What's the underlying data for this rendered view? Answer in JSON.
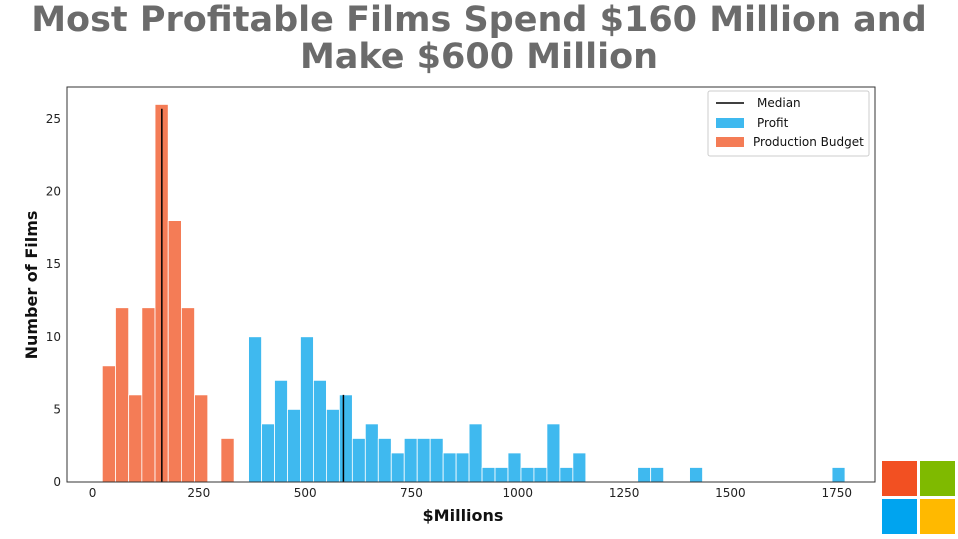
{
  "chart_data": {
    "type": "bar",
    "title_lines": [
      "Most Profitable Films Spend $160 Million and",
      "Make $600 Million"
    ],
    "xlabel": "$Millions",
    "ylabel": "Number of Films",
    "xlim": [
      -60,
      1840
    ],
    "ylim": [
      0,
      27.2
    ],
    "xticks": [
      0,
      250,
      500,
      750,
      1000,
      1250,
      1500,
      1750
    ],
    "yticks": [
      0,
      5,
      10,
      15,
      20,
      25
    ],
    "grid": false,
    "legend_position": "top-right",
    "legend": [
      "Median",
      "Profit",
      "Production Budget"
    ],
    "series": [
      {
        "name": "Production Budget",
        "color": "#f47c56",
        "bin_width": 31,
        "bin_starts": [
          23,
          54,
          85,
          116,
          147,
          178,
          209,
          240,
          302
        ],
        "counts": [
          8,
          12,
          6,
          12,
          26,
          18,
          12,
          6,
          1
        ],
        "extra_bins": [
          [
            302,
            333,
            3
          ]
        ]
      },
      {
        "name": "Profit",
        "color": "#3fb9ef",
        "bin_width": 30.5,
        "bin_starts": [
          367,
          397.5,
          428,
          458.5,
          489,
          519.5,
          550,
          580.5,
          611,
          641.5,
          672,
          702.5,
          733,
          763.5,
          794,
          824.5,
          855,
          885.5,
          916,
          946.5,
          977,
          1007.5,
          1038,
          1068.5,
          1099,
          1129.5,
          1282,
          1312.5,
          1404,
          1739
        ],
        "counts": [
          10,
          4,
          7,
          5,
          10,
          7,
          5,
          6,
          3,
          4,
          3,
          2,
          3,
          3,
          3,
          2,
          2,
          4,
          1,
          1,
          2,
          1,
          1,
          4,
          1,
          2,
          1,
          1,
          1,
          1
        ]
      }
    ],
    "medians": [
      {
        "series": "Production Budget",
        "value": 163,
        "height": 25.7
      },
      {
        "series": "Profit",
        "value": 590,
        "height": 6
      }
    ],
    "colors": {
      "median": "#000000"
    }
  },
  "logo": {
    "name": "microsoft-logo",
    "colors": [
      "#f25022",
      "#7fba00",
      "#00a4ef",
      "#ffb900"
    ]
  }
}
